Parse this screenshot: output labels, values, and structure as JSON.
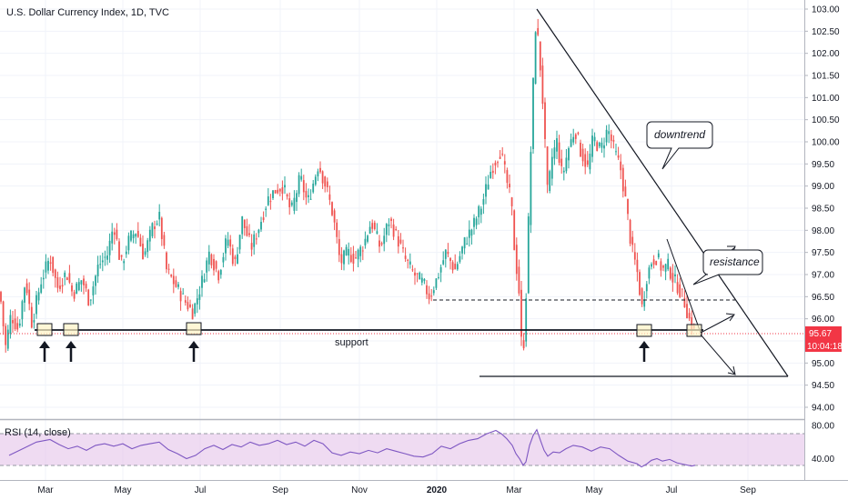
{
  "header": {
    "title": "U.S. Dollar Currency Index, 1D, TVC"
  },
  "price_axis": {
    "current_price": "95.67",
    "countdown": "10:04:18"
  },
  "annotations": {
    "downtrend": "downtrend",
    "resistance": "resistance",
    "support": "support"
  },
  "rsi_panel": {
    "label": "RSI (14, close)"
  },
  "colors": {
    "up": "#26a69a",
    "down": "#ef5350",
    "rsi_line": "#7e57c2",
    "rsi_band": "#e1bee7",
    "price_label_bg": "#f23645"
  },
  "chart_data": [
    {
      "type": "candlestick",
      "title": "U.S. Dollar Currency Index, 1D, TVC",
      "ylim": [
        94.0,
        103.2
      ],
      "yticks": [
        "103.00",
        "102.50",
        "102.00",
        "101.50",
        "101.00",
        "100.50",
        "100.00",
        "99.50",
        "99.00",
        "98.50",
        "98.00",
        "97.50",
        "97.00",
        "96.50",
        "96.00",
        "95.50",
        "95.00",
        "94.50",
        "94.00"
      ],
      "x_tick_labels": [
        "Mar",
        "May",
        "Jul",
        "Sep",
        "Nov",
        "2020",
        "Mar",
        "May",
        "Jul",
        "Sep"
      ],
      "series": [
        {
          "values": [
            [
              0,
              96.6
            ],
            [
              6,
              95.35
            ],
            [
              12,
              96.1
            ],
            [
              20,
              95.75
            ],
            [
              28,
              96.9
            ],
            [
              35,
              95.9
            ],
            [
              45,
              96.85
            ],
            [
              55,
              97.4
            ],
            [
              63,
              96.7
            ],
            [
              73,
              97.05
            ],
            [
              80,
              96.55
            ],
            [
              90,
              96.9
            ],
            [
              98,
              96.4
            ],
            [
              108,
              97.2
            ],
            [
              118,
              97.45
            ],
            [
              125,
              98.15
            ],
            [
              133,
              97.2
            ],
            [
              142,
              97.8
            ],
            [
              150,
              98.0
            ],
            [
              158,
              97.4
            ],
            [
              168,
              98.1
            ],
            [
              175,
              98.3
            ],
            [
              183,
              97.1
            ],
            [
              193,
              96.75
            ],
            [
              203,
              96.4
            ],
            [
              212,
              96.15
            ],
            [
              222,
              96.85
            ],
            [
              230,
              97.5
            ],
            [
              240,
              97.0
            ],
            [
              250,
              97.85
            ],
            [
              258,
              97.2
            ],
            [
              266,
              98.25
            ],
            [
              276,
              97.6
            ],
            [
              285,
              98.1
            ],
            [
              294,
              98.7
            ],
            [
              302,
              98.9
            ],
            [
              311,
              99.0
            ],
            [
              320,
              98.4
            ],
            [
              330,
              99.2
            ],
            [
              338,
              98.6
            ],
            [
              350,
              99.5
            ],
            [
              358,
              99.0
            ],
            [
              366,
              98.35
            ],
            [
              374,
              97.25
            ],
            [
              382,
              97.5
            ],
            [
              390,
              97.35
            ],
            [
              400,
              97.7
            ],
            [
              408,
              98.2
            ],
            [
              418,
              97.6
            ],
            [
              428,
              98.25
            ],
            [
              438,
              97.75
            ],
            [
              445,
              97.35
            ],
            [
              455,
              97.0
            ],
            [
              465,
              96.8
            ],
            [
              472,
              96.5
            ],
            [
              480,
              96.9
            ],
            [
              490,
              97.5
            ],
            [
              500,
              97.1
            ],
            [
              510,
              97.7
            ],
            [
              520,
              98.1
            ],
            [
              530,
              98.6
            ],
            [
              540,
              99.4
            ],
            [
              550,
              99.8
            ],
            [
              556,
              99.2
            ],
            [
              562,
              98.6
            ],
            [
              566,
              97.4
            ],
            [
              570,
              96.8
            ],
            [
              574,
              95.05
            ],
            [
              577,
              95.85
            ],
            [
              581,
              98.3
            ],
            [
              585,
              100.8
            ],
            [
              589,
              102.8
            ],
            [
              593,
              101.9
            ],
            [
              596,
              101.1
            ],
            [
              599,
              99.9
            ],
            [
              602,
              98.7
            ],
            [
              606,
              99.6
            ],
            [
              612,
              100.0
            ],
            [
              618,
              99.2
            ],
            [
              624,
              99.8
            ],
            [
              632,
              100.3
            ],
            [
              638,
              99.8
            ],
            [
              646,
              99.4
            ],
            [
              652,
              100.1
            ],
            [
              660,
              99.8
            ],
            [
              668,
              100.3
            ],
            [
              675,
              99.8
            ],
            [
              682,
              99.4
            ],
            [
              688,
              98.6
            ],
            [
              694,
              97.6
            ],
            [
              700,
              97.1
            ],
            [
              706,
              96.2
            ],
            [
              710,
              96.9
            ],
            [
              716,
              97.3
            ],
            [
              722,
              97.4
            ],
            [
              728,
              97.1
            ],
            [
              734,
              97.2
            ],
            [
              740,
              96.9
            ],
            [
              746,
              96.7
            ],
            [
              752,
              96.4
            ],
            [
              758,
              95.95
            ],
            [
              764,
              95.67
            ]
          ]
        }
      ]
    },
    {
      "type": "line",
      "title": "RSI (14, close)",
      "ylim": [
        25,
        85
      ],
      "yticks": [
        "80.00",
        "40.00"
      ],
      "series": [
        {
          "values": [
            [
              10,
              44
            ],
            [
              25,
              52
            ],
            [
              40,
              60
            ],
            [
              55,
              63
            ],
            [
              65,
              57
            ],
            [
              75,
              52
            ],
            [
              85,
              55
            ],
            [
              95,
              50
            ],
            [
              105,
              56
            ],
            [
              115,
              58
            ],
            [
              125,
              55
            ],
            [
              135,
              58
            ],
            [
              145,
              52
            ],
            [
              155,
              56
            ],
            [
              165,
              58
            ],
            [
              175,
              60
            ],
            [
              185,
              51
            ],
            [
              195,
              46
            ],
            [
              205,
              40
            ],
            [
              215,
              44
            ],
            [
              225,
              52
            ],
            [
              235,
              56
            ],
            [
              245,
              51
            ],
            [
              255,
              57
            ],
            [
              265,
              54
            ],
            [
              275,
              60
            ],
            [
              285,
              56
            ],
            [
              295,
              58
            ],
            [
              305,
              62
            ],
            [
              315,
              57
            ],
            [
              325,
              60
            ],
            [
              335,
              55
            ],
            [
              345,
              62
            ],
            [
              355,
              58
            ],
            [
              365,
              47
            ],
            [
              375,
              44
            ],
            [
              385,
              48
            ],
            [
              395,
              46
            ],
            [
              405,
              50
            ],
            [
              415,
              47
            ],
            [
              425,
              52
            ],
            [
              435,
              49
            ],
            [
              445,
              46
            ],
            [
              455,
              43
            ],
            [
              465,
              42
            ],
            [
              475,
              46
            ],
            [
              485,
              55
            ],
            [
              495,
              52
            ],
            [
              505,
              58
            ],
            [
              515,
              62
            ],
            [
              525,
              64
            ],
            [
              535,
              70
            ],
            [
              545,
              74
            ],
            [
              551,
              70
            ],
            [
              557,
              64
            ],
            [
              563,
              56
            ],
            [
              567,
              46
            ],
            [
              571,
              40
            ],
            [
              575,
              32
            ],
            [
              578,
              36
            ],
            [
              582,
              56
            ],
            [
              586,
              68
            ],
            [
              590,
              75
            ],
            [
              594,
              62
            ],
            [
              598,
              50
            ],
            [
              602,
              43
            ],
            [
              608,
              48
            ],
            [
              615,
              47
            ],
            [
              622,
              52
            ],
            [
              630,
              56
            ],
            [
              640,
              54
            ],
            [
              650,
              49
            ],
            [
              660,
              54
            ],
            [
              670,
              52
            ],
            [
              680,
              44
            ],
            [
              690,
              37
            ],
            [
              700,
              34
            ],
            [
              705,
              30
            ],
            [
              710,
              33
            ],
            [
              716,
              38
            ],
            [
              722,
              40
            ],
            [
              728,
              37
            ],
            [
              736,
              39
            ],
            [
              744,
              35
            ],
            [
              752,
              33
            ],
            [
              760,
              31
            ],
            [
              764,
              32
            ]
          ]
        }
      ]
    }
  ]
}
